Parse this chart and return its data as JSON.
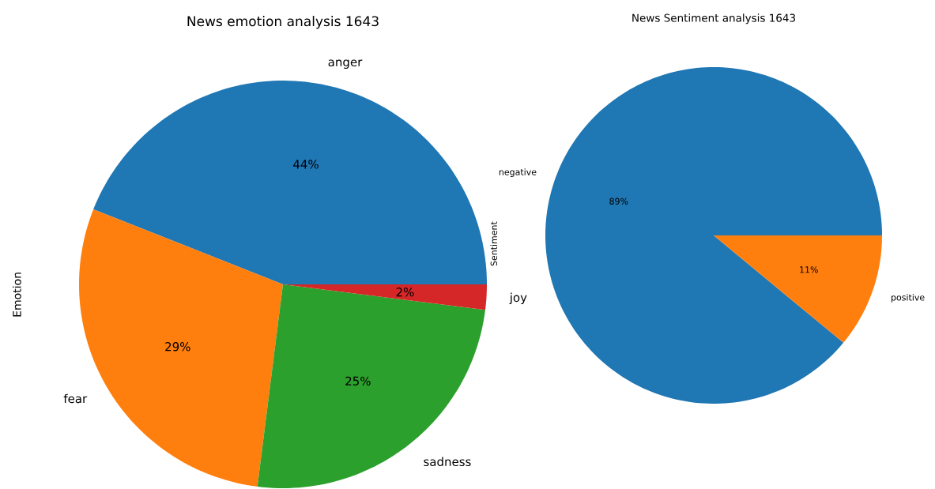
{
  "chart_data": [
    {
      "type": "pie",
      "title": "News emotion analysis 1643",
      "ylabel": "Emotion",
      "categories": [
        "anger",
        "fear",
        "sadness",
        "joy"
      ],
      "values": [
        44,
        29,
        25,
        2
      ],
      "value_labels": [
        "44%",
        "29%",
        "25%",
        "2%"
      ],
      "colors": [
        "#1f77b4",
        "#ff7f0e",
        "#2ca02c",
        "#d62728"
      ]
    },
    {
      "type": "pie",
      "title": "News Sentiment analysis 1643",
      "ylabel": "Sentiment",
      "categories": [
        "negative",
        "positive"
      ],
      "values": [
        89,
        11
      ],
      "value_labels": [
        "89%",
        "11%"
      ],
      "colors": [
        "#1f77b4",
        "#ff7f0e"
      ]
    }
  ]
}
